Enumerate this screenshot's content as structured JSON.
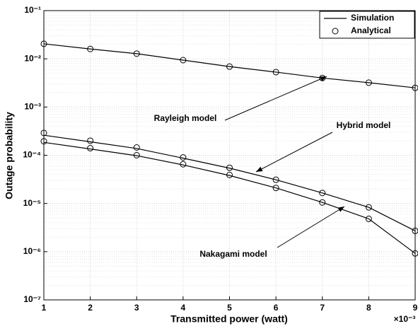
{
  "chart_data": {
    "type": "line",
    "x_label": "Transmitted power (watt)",
    "y_label": "Outage probability",
    "x_multiplier": "×10⁻³",
    "x": [
      1,
      2,
      3,
      4,
      5,
      6,
      7,
      8,
      9
    ],
    "xlim": [
      1,
      9
    ],
    "xticks": [
      1,
      2,
      3,
      4,
      5,
      6,
      7,
      8,
      9
    ],
    "ylim": [
      1e-07,
      0.1
    ],
    "log_y": true,
    "grid": true,
    "yticks": [
      {
        "value": 1e-07,
        "label": "10⁻⁷"
      },
      {
        "value": 1e-06,
        "label": "10⁻⁶"
      },
      {
        "value": 1e-05,
        "label": "10⁻⁵"
      },
      {
        "value": 0.0001,
        "label": "10⁻⁴"
      },
      {
        "value": 0.001,
        "label": "10⁻³"
      },
      {
        "value": 0.01,
        "label": "10⁻²"
      },
      {
        "value": 0.1,
        "label": "10⁻¹"
      }
    ],
    "legend_position": "upper right",
    "legend": [
      {
        "label": "Simulation",
        "style": "line"
      },
      {
        "label": "Analytical",
        "style": "marker"
      }
    ],
    "color": "#000000",
    "curves": [
      {
        "label": "Rayleigh model",
        "simulation": [
          0.0205,
          0.016,
          0.0128,
          0.0094,
          0.0069,
          0.0053,
          0.004,
          0.0032,
          0.0025
        ],
        "analytical": [
          0.0205,
          0.016,
          0.0128,
          0.0094,
          0.0069,
          0.0053,
          0.004,
          0.0032,
          0.0025
        ]
      },
      {
        "label": "Hybrid model",
        "simulation": [
          0.00026,
          0.00019,
          0.000138,
          8.7e-05,
          5.4e-05,
          3.1e-05,
          1.65e-05,
          8.3e-06,
          2.7e-06
        ],
        "analytical": [
          0.00029,
          0.0002,
          0.000145,
          9e-05,
          5.5e-05,
          3.1e-05,
          1.65e-05,
          8.3e-06,
          2.7e-06
        ]
      },
      {
        "label": "Nakagami model",
        "simulation": [
          0.000185,
          0.000135,
          9.8e-05,
          6.3e-05,
          3.8e-05,
          2.1e-05,
          1.05e-05,
          4.8e-06,
          9.2e-07
        ],
        "analytical": [
          0.000195,
          0.00014,
          0.0001,
          6.5e-05,
          3.9e-05,
          2.1e-05,
          1.05e-05,
          4.8e-06,
          9.2e-07
        ]
      }
    ]
  }
}
